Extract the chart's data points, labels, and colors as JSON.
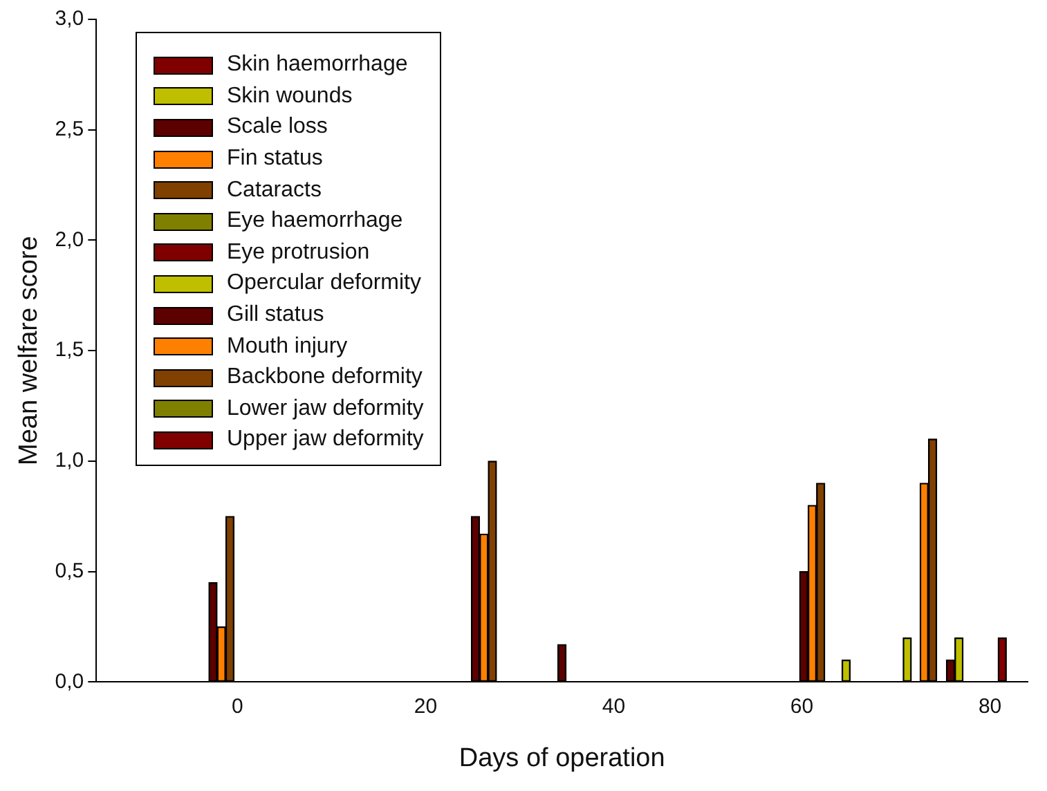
{
  "chart_data": {
    "type": "bar",
    "xlabel": "Days of operation",
    "ylabel": "Mean welfare score",
    "xlim": [
      -15,
      84
    ],
    "xticks": [
      0,
      20,
      40,
      60,
      80
    ],
    "ylim": [
      0,
      3
    ],
    "yticks": [
      {
        "value": 0,
        "label": "0,0"
      },
      {
        "value": 0.5,
        "label": "0,5"
      },
      {
        "value": 1,
        "label": "1,0"
      },
      {
        "value": 1.5,
        "label": "1,5"
      },
      {
        "value": 2,
        "label": "2,0"
      },
      {
        "value": 2.5,
        "label": "2,5"
      },
      {
        "value": 3,
        "label": "3,0"
      }
    ],
    "legend": "top left",
    "series": [
      {
        "name": "Skin haemorrhage",
        "color": "#800000"
      },
      {
        "name": "Skin wounds",
        "color": "#bfbf00",
        "x": [
          64.7,
          71.2,
          76.7
        ],
        "values": [
          0.1,
          0.2,
          0.2
        ]
      },
      {
        "name": "Scale loss",
        "color": "#5c0000",
        "x": [
          -2.6,
          25.3,
          60.2,
          75.8
        ],
        "values": [
          0.45,
          0.75,
          0.5,
          0.1
        ]
      },
      {
        "name": "Fin status",
        "color": "#ff8000",
        "x": [
          -1.7,
          26.2,
          61.1,
          73.0
        ],
        "values": [
          0.25,
          0.67,
          0.8,
          0.9
        ]
      },
      {
        "name": "Cataracts",
        "color": "#804000",
        "x": [
          -0.8,
          27.1,
          62.0,
          73.9
        ],
        "values": [
          0.75,
          1.0,
          0.9,
          1.1
        ]
      },
      {
        "name": "Eye haemorrhage",
        "color": "#808000"
      },
      {
        "name": "Eye protrusion",
        "color": "#800000"
      },
      {
        "name": "Opercular deformity",
        "color": "#bfbf00"
      },
      {
        "name": "Gill status",
        "color": "#5c0000",
        "x": [
          34.5
        ],
        "values": [
          0.17
        ]
      },
      {
        "name": "Mouth injury",
        "color": "#ff8000"
      },
      {
        "name": "Backbone deformity",
        "color": "#804000"
      },
      {
        "name": "Lower jaw deformity",
        "color": "#808000"
      },
      {
        "name": "Upper jaw deformity",
        "color": "#800000",
        "x": [
          81.3
        ],
        "values": [
          0.2
        ]
      }
    ]
  }
}
